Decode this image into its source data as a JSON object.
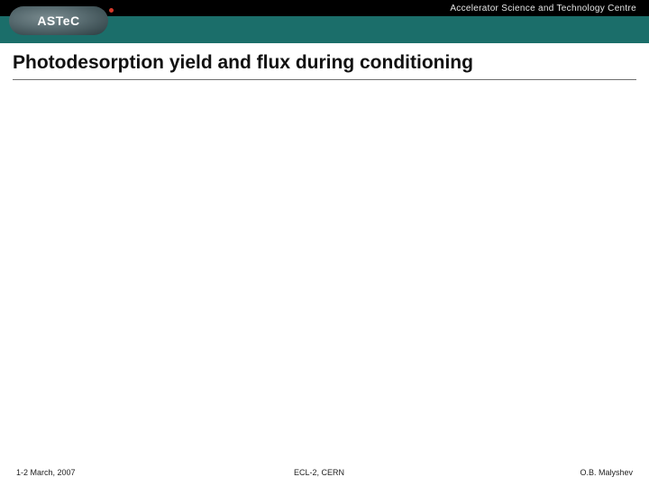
{
  "colors": {
    "header_bg": "#000000",
    "band": "#1b6e6a",
    "logo_dot": "#d43a2a",
    "title_text": "#111111",
    "rule": "#6f6f6f",
    "footer_text": "#222222",
    "page_bg": "#ffffff"
  },
  "header": {
    "logo_text": "ASTeC",
    "subtitle": "Accelerator Science and Technology Centre"
  },
  "slide": {
    "title": "Photodesorption yield and flux during conditioning"
  },
  "footer": {
    "left": "1-2 March, 2007",
    "center": "ECL-2, CERN",
    "right": "O.B. Malyshev"
  }
}
